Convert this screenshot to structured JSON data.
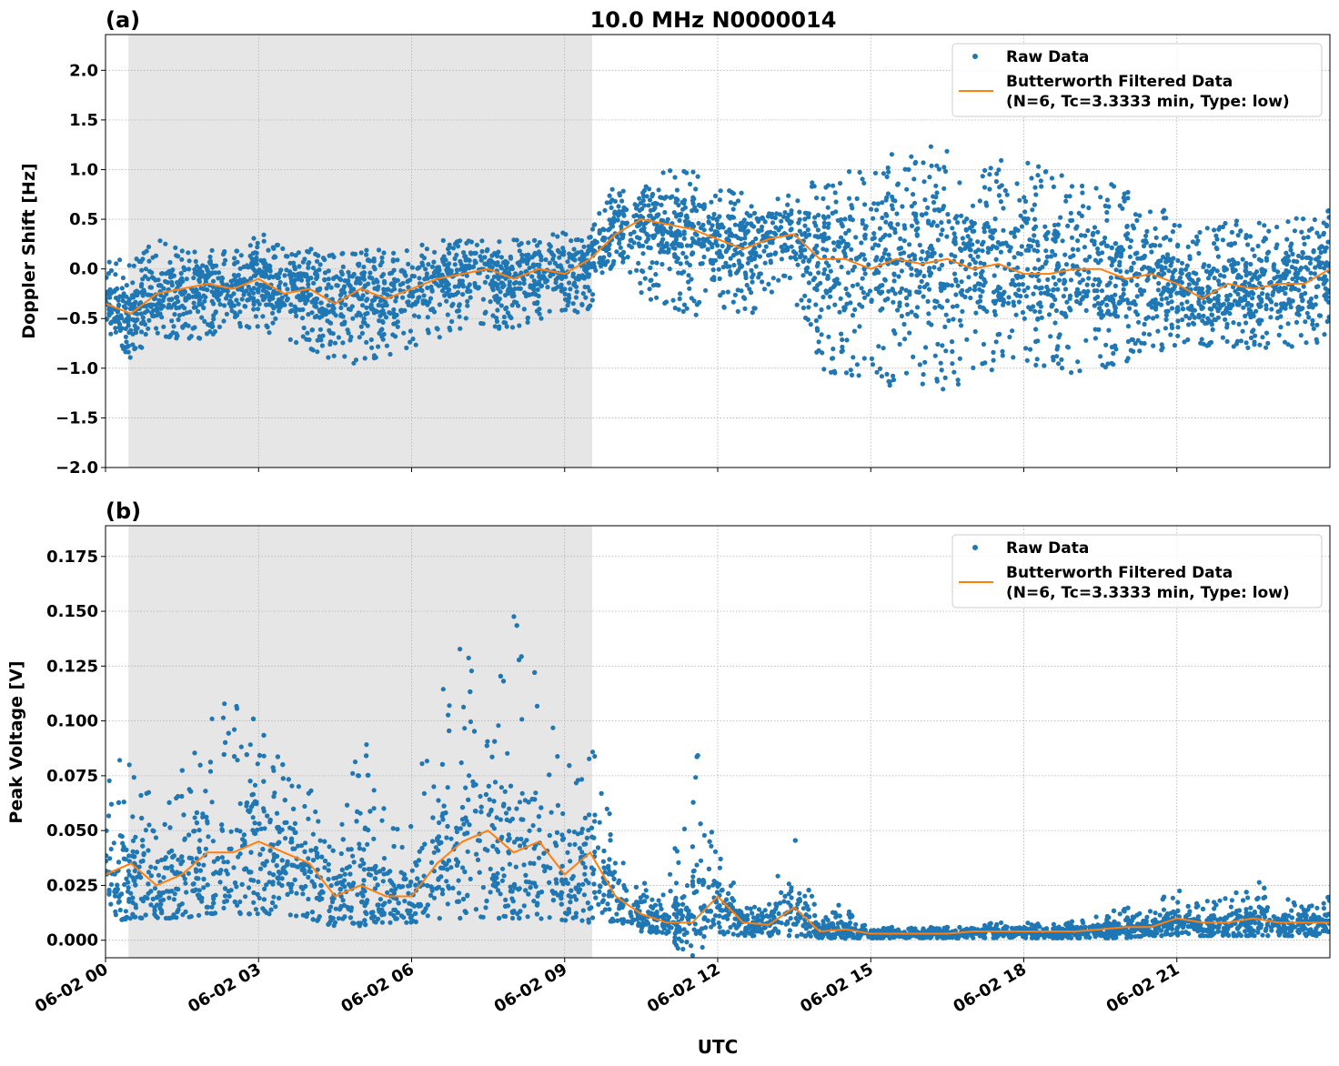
{
  "chart_data": [
    {
      "type": "scatter",
      "panel_label": "(a)",
      "title": "10.0 MHz N0000014",
      "xlabel": "",
      "ylabel": "Doppler Shift [Hz]",
      "xlim_hours": [
        0,
        24
      ],
      "ylim": [
        -2.0,
        2.36
      ],
      "yticks": [
        -2.0,
        -1.5,
        -1.0,
        -0.5,
        0.0,
        0.5,
        1.0,
        1.5,
        2.0
      ],
      "ytick_labels": [
        "−2.0",
        "−1.5",
        "−1.0",
        "−0.5",
        "0.0",
        "0.5",
        "1.0",
        "1.5",
        "2.0"
      ],
      "grid": true,
      "shaded_region_hours": [
        0.45,
        9.54
      ],
      "legend": {
        "placement": "top-right",
        "entries": [
          "Raw Data",
          "Butterworth Filtered Data",
          "(N=6, Tc=3.3333 min, Type: low)"
        ]
      },
      "x_hours": [
        0,
        0.5,
        1,
        1.5,
        2,
        2.5,
        3,
        3.5,
        4,
        4.5,
        5,
        5.5,
        6,
        6.5,
        7,
        7.5,
        8,
        8.5,
        9,
        9.5,
        10,
        10.5,
        11,
        11.5,
        12,
        12.5,
        13,
        13.5,
        14,
        14.5,
        15,
        15.5,
        16,
        16.5,
        17,
        17.5,
        18,
        18.5,
        19,
        19.5,
        20,
        20.5,
        21,
        21.5,
        22,
        22.5,
        23,
        23.5,
        24
      ],
      "series": [
        {
          "name": "Butterworth Filtered Data",
          "color": "#ff7f0e",
          "values": [
            -0.35,
            -0.45,
            -0.25,
            -0.2,
            -0.15,
            -0.2,
            -0.1,
            -0.25,
            -0.2,
            -0.35,
            -0.2,
            -0.3,
            -0.2,
            -0.1,
            -0.05,
            0.0,
            -0.1,
            0.0,
            -0.05,
            0.1,
            0.35,
            0.5,
            0.45,
            0.4,
            0.3,
            0.2,
            0.3,
            0.35,
            0.1,
            0.1,
            0.0,
            0.1,
            0.05,
            0.1,
            0.0,
            0.05,
            -0.05,
            -0.05,
            0.0,
            0.0,
            -0.1,
            -0.05,
            -0.15,
            -0.3,
            -0.15,
            -0.2,
            -0.15,
            -0.15,
            0.0
          ]
        },
        {
          "name": "Raw Data",
          "color": "#1f77b4",
          "envelope_low": [
            -0.7,
            -0.9,
            -0.7,
            -0.7,
            -0.7,
            -0.6,
            -0.6,
            -0.7,
            -0.8,
            -1.0,
            -1.0,
            -0.9,
            -0.8,
            -0.7,
            -0.6,
            -0.6,
            -0.6,
            -0.5,
            -0.5,
            -0.4,
            -0.1,
            -0.3,
            -0.4,
            -0.5,
            -0.4,
            -0.5,
            -0.4,
            -0.3,
            -1.0,
            -1.1,
            -1.1,
            -1.2,
            -1.2,
            -1.3,
            -1.1,
            -1.0,
            -1.0,
            -1.0,
            -1.1,
            -1.0,
            -1.0,
            -0.9,
            -0.8,
            -0.8,
            -0.8,
            -0.8,
            -0.8,
            -0.8,
            -0.7
          ],
          "envelope_high": [
            0.1,
            0.1,
            0.3,
            0.2,
            0.2,
            0.2,
            0.4,
            0.2,
            0.2,
            0.2,
            0.2,
            0.2,
            0.2,
            0.3,
            0.3,
            0.3,
            0.3,
            0.3,
            0.4,
            0.4,
            0.9,
            1.0,
            1.0,
            1.0,
            0.8,
            0.8,
            0.7,
            0.8,
            1.0,
            1.1,
            1.0,
            1.2,
            1.3,
            1.2,
            1.0,
            1.1,
            1.1,
            1.0,
            1.0,
            0.9,
            0.8,
            0.7,
            0.5,
            0.5,
            0.5,
            0.5,
            0.5,
            0.6,
            0.6
          ]
        }
      ]
    },
    {
      "type": "scatter",
      "panel_label": "(b)",
      "xlabel": "UTC",
      "ylabel": "Peak Voltage [V]",
      "xlim_hours": [
        0,
        24
      ],
      "ylim": [
        -0.008,
        0.189
      ],
      "yticks": [
        0.0,
        0.025,
        0.05,
        0.075,
        0.1,
        0.125,
        0.15,
        0.175
      ],
      "ytick_labels": [
        "0.000",
        "0.025",
        "0.050",
        "0.075",
        "0.100",
        "0.125",
        "0.150",
        "0.175"
      ],
      "xtick_hours": [
        0,
        3,
        6,
        9,
        12,
        15,
        18,
        21
      ],
      "xtick_labels": [
        "06-02 00",
        "06-02 03",
        "06-02 06",
        "06-02 09",
        "06-02 12",
        "06-02 15",
        "06-02 18",
        "06-02 21"
      ],
      "grid": true,
      "shaded_region_hours": [
        0.45,
        9.54
      ],
      "legend": {
        "placement": "top-right",
        "entries": [
          "Raw Data",
          "Butterworth Filtered Data",
          "(N=6, Tc=3.3333 min, Type: low)"
        ]
      },
      "x_hours": [
        0,
        0.5,
        1,
        1.5,
        2,
        2.5,
        3,
        3.5,
        4,
        4.5,
        5,
        5.5,
        6,
        6.5,
        7,
        7.5,
        8,
        8.5,
        9,
        9.5,
        10,
        10.5,
        11,
        11.5,
        12,
        12.5,
        13,
        13.5,
        14,
        14.5,
        15,
        15.5,
        16,
        16.5,
        17,
        17.5,
        18,
        18.5,
        19,
        19.5,
        20,
        20.5,
        21,
        21.5,
        22,
        22.5,
        23,
        23.5,
        24
      ],
      "series": [
        {
          "name": "Butterworth Filtered Data",
          "color": "#ff7f0e",
          "values": [
            0.03,
            0.035,
            0.025,
            0.03,
            0.04,
            0.04,
            0.045,
            0.04,
            0.035,
            0.02,
            0.025,
            0.02,
            0.02,
            0.035,
            0.045,
            0.05,
            0.04,
            0.045,
            0.03,
            0.04,
            0.02,
            0.012,
            0.008,
            0.008,
            0.02,
            0.008,
            0.007,
            0.015,
            0.004,
            0.005,
            0.003,
            0.003,
            0.003,
            0.003,
            0.004,
            0.004,
            0.004,
            0.004,
            0.004,
            0.005,
            0.006,
            0.006,
            0.01,
            0.008,
            0.008,
            0.01,
            0.008,
            0.008,
            0.008
          ]
        },
        {
          "name": "Raw Data",
          "color": "#1f77b4",
          "envelope_low": [
            0.008,
            0.01,
            0.01,
            0.01,
            0.012,
            0.012,
            0.012,
            0.012,
            0.01,
            0.006,
            0.008,
            0.008,
            0.008,
            0.01,
            0.01,
            0.01,
            0.01,
            0.01,
            0.008,
            0.008,
            0.006,
            0.004,
            0.003,
            0.003,
            0.003,
            0.002,
            0.002,
            0.002,
            0.001,
            0.001,
            0.001,
            0.001,
            0.001,
            0.001,
            0.001,
            0.001,
            0.001,
            0.001,
            0.001,
            0.001,
            0.001,
            0.002,
            0.002,
            0.002,
            0.002,
            0.002,
            0.002,
            0.002,
            0.002
          ],
          "envelope_high": [
            0.075,
            0.09,
            0.06,
            0.08,
            0.1,
            0.12,
            0.1,
            0.08,
            0.07,
            0.04,
            0.1,
            0.06,
            0.06,
            0.11,
            0.14,
            0.11,
            0.15,
            0.12,
            0.08,
            0.1,
            0.05,
            0.03,
            0.02,
            0.1,
            0.04,
            0.02,
            0.02,
            0.05,
            0.01,
            0.02,
            0.006,
            0.006,
            0.006,
            0.006,
            0.008,
            0.008,
            0.008,
            0.008,
            0.01,
            0.012,
            0.015,
            0.015,
            0.025,
            0.02,
            0.02,
            0.03,
            0.02,
            0.02,
            0.02
          ]
        }
      ]
    }
  ]
}
